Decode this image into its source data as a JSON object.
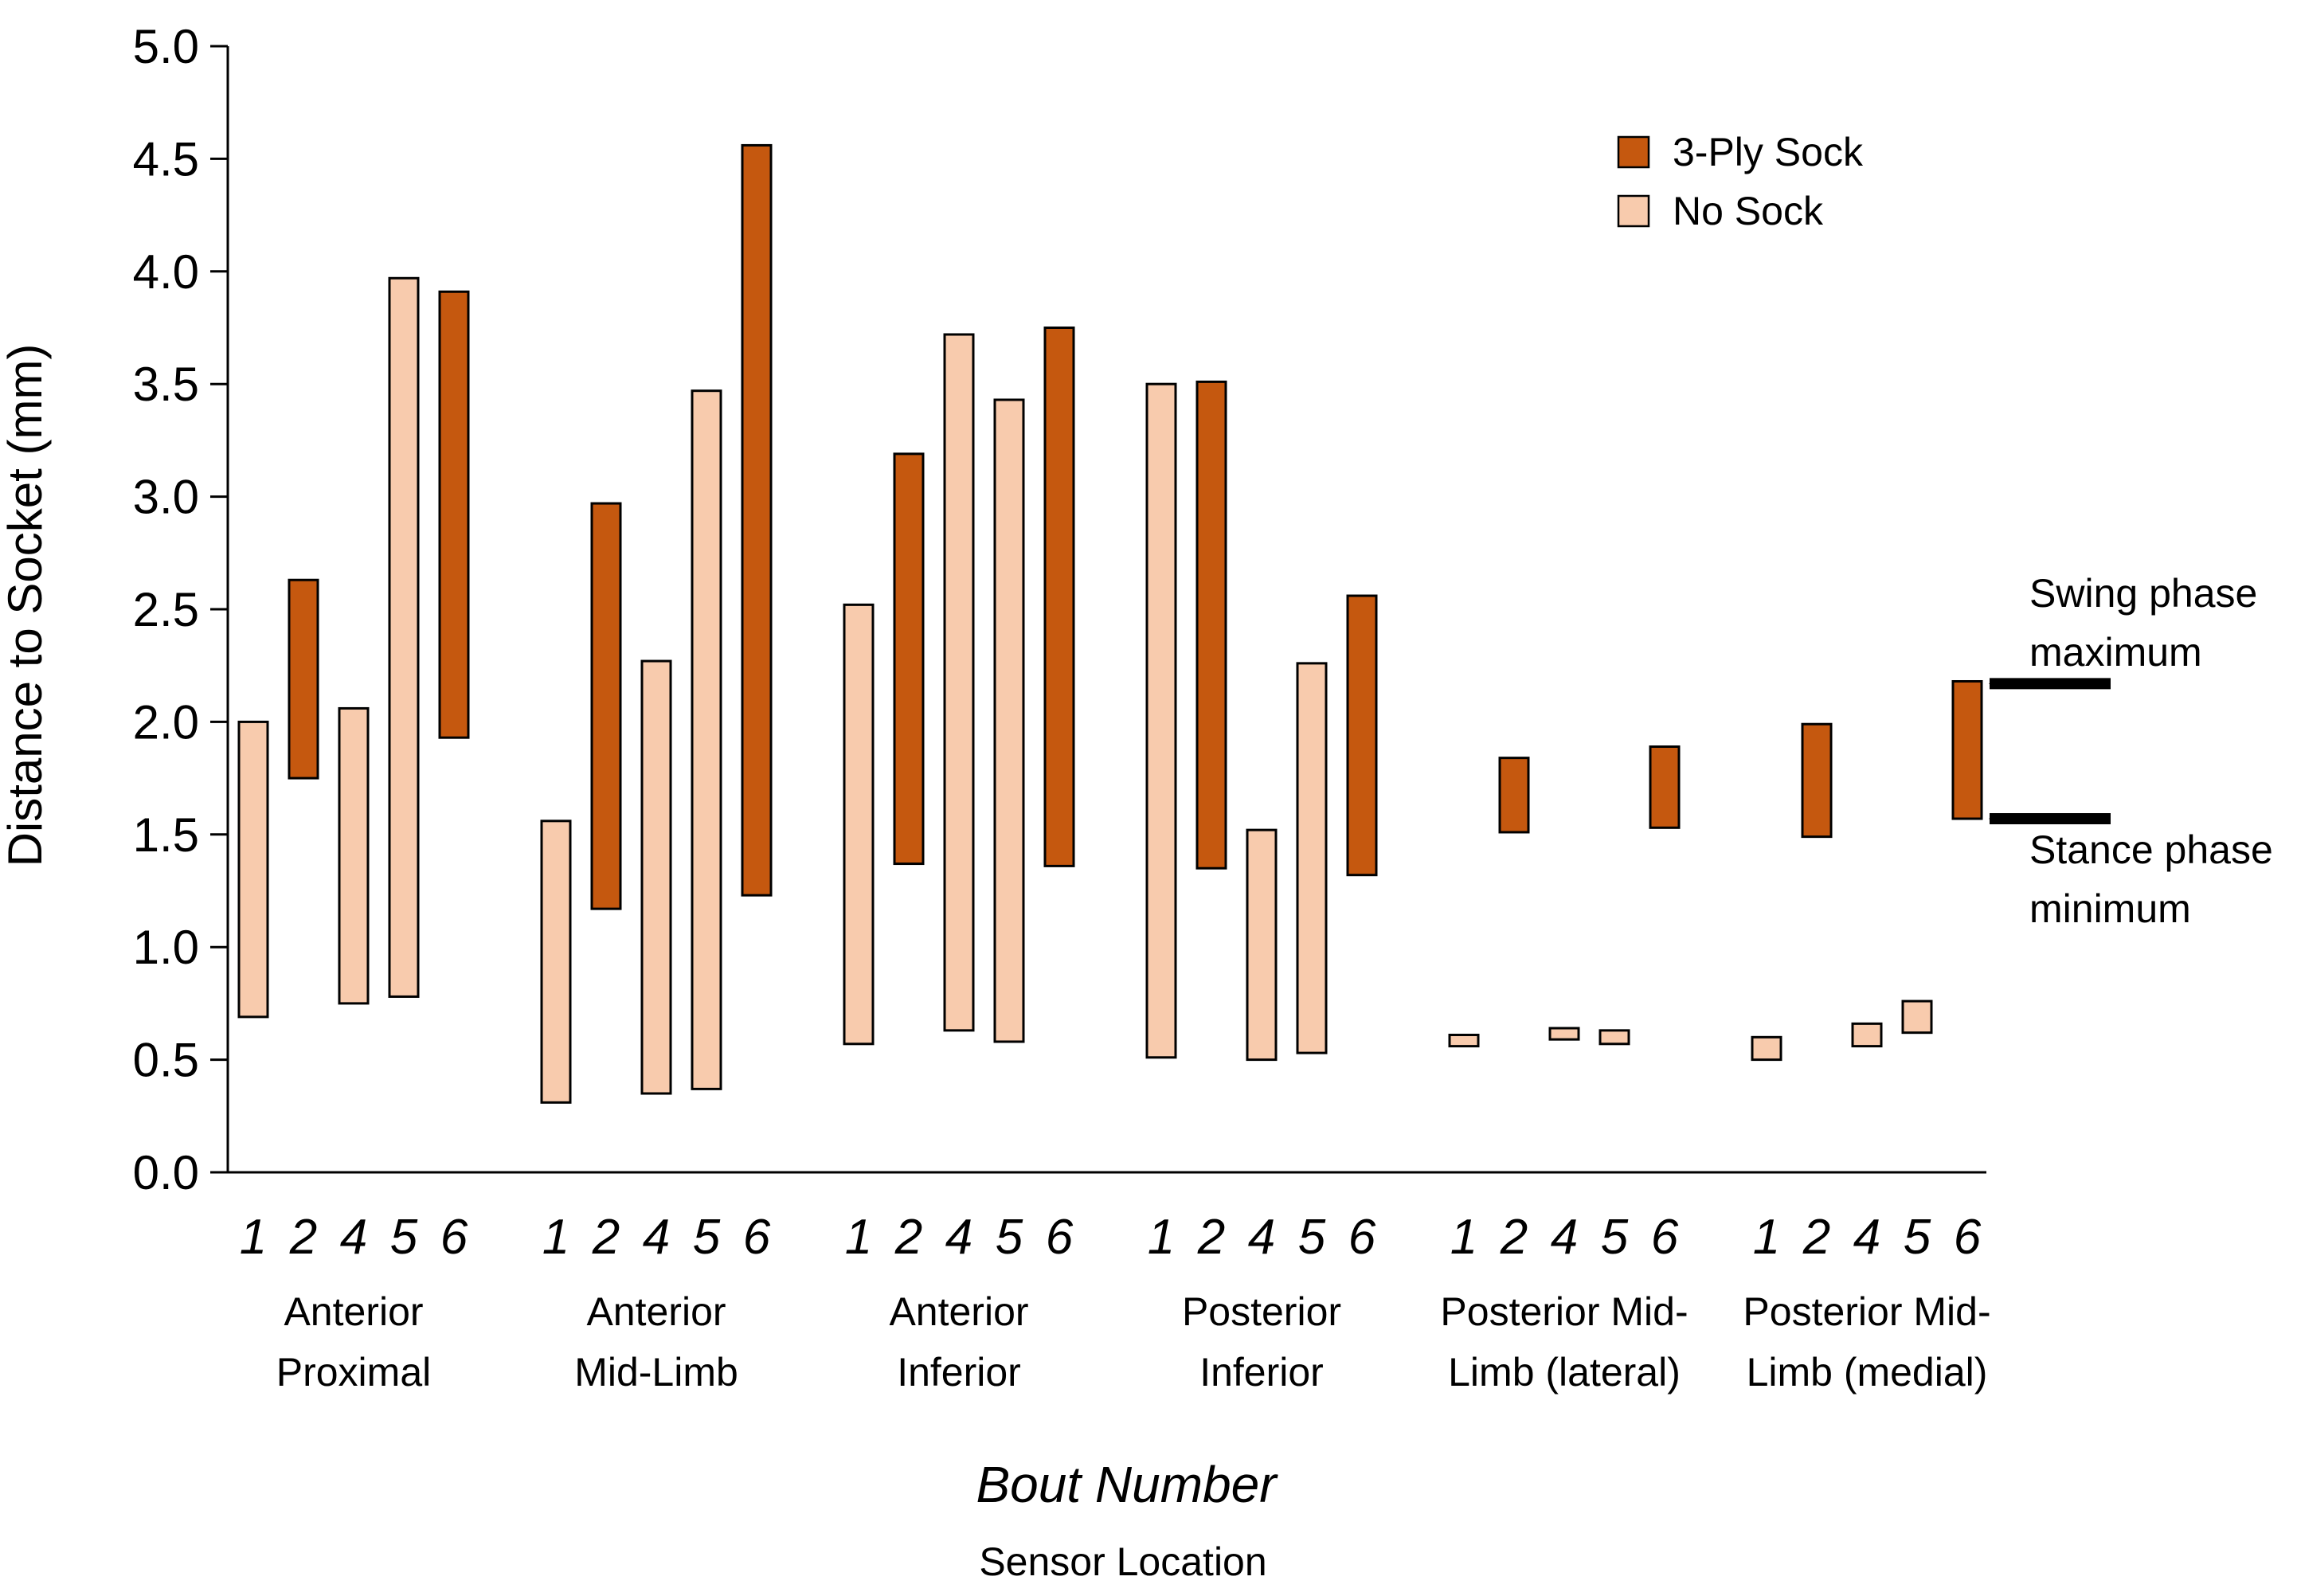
{
  "chart_data": {
    "type": "floating-bar",
    "ylabel": "Distance to Socket (mm)",
    "xlabel": "Bout Number",
    "xlabel2": "Sensor Location",
    "ylim": [
      0,
      5
    ],
    "ytick_labels": [
      "0.0",
      "0.5",
      "1.0",
      "1.5",
      "2.0",
      "2.5",
      "3.0",
      "3.5",
      "4.0",
      "4.5",
      "5.0"
    ],
    "legend": [
      {
        "key": "sock",
        "label": "3-Ply Sock",
        "color": "#c5580f"
      },
      {
        "key": "nosock",
        "label": "No Sock",
        "color": "#f8cbad"
      }
    ],
    "annotations": {
      "swing": [
        "Swing phase",
        "maximum"
      ],
      "stance": [
        "Stance phase",
        "minimum"
      ],
      "swing_value": 2.17,
      "stance_value": 1.57
    },
    "groups": [
      {
        "name_lines": [
          "Anterior",
          "Proximal"
        ],
        "bars": [
          {
            "bout": "1",
            "type": "nosock",
            "min": 0.69,
            "max": 2.0
          },
          {
            "bout": "2",
            "type": "sock",
            "min": 1.75,
            "max": 2.63
          },
          {
            "bout": "4",
            "type": "nosock",
            "min": 0.75,
            "max": 2.06
          },
          {
            "bout": "5",
            "type": "nosock",
            "min": 0.78,
            "max": 3.97
          },
          {
            "bout": "6",
            "type": "sock",
            "min": 1.93,
            "max": 3.91
          }
        ]
      },
      {
        "name_lines": [
          "Anterior",
          "Mid-Limb"
        ],
        "bars": [
          {
            "bout": "1",
            "type": "nosock",
            "min": 0.31,
            "max": 1.56
          },
          {
            "bout": "2",
            "type": "sock",
            "min": 1.17,
            "max": 2.97
          },
          {
            "bout": "4",
            "type": "nosock",
            "min": 0.35,
            "max": 2.27
          },
          {
            "bout": "5",
            "type": "nosock",
            "min": 0.37,
            "max": 3.47
          },
          {
            "bout": "6",
            "type": "sock",
            "min": 1.23,
            "max": 4.56
          }
        ]
      },
      {
        "name_lines": [
          "Anterior",
          "Inferior"
        ],
        "bars": [
          {
            "bout": "1",
            "type": "nosock",
            "min": 0.57,
            "max": 2.52
          },
          {
            "bout": "2",
            "type": "sock",
            "min": 1.37,
            "max": 3.19
          },
          {
            "bout": "4",
            "type": "nosock",
            "min": 0.63,
            "max": 3.72
          },
          {
            "bout": "5",
            "type": "nosock",
            "min": 0.58,
            "max": 3.43
          },
          {
            "bout": "6",
            "type": "sock",
            "min": 1.36,
            "max": 3.75
          }
        ]
      },
      {
        "name_lines": [
          "Posterior",
          "Inferior"
        ],
        "bars": [
          {
            "bout": "1",
            "type": "nosock",
            "min": 0.51,
            "max": 3.5
          },
          {
            "bout": "2",
            "type": "sock",
            "min": 1.35,
            "max": 3.51
          },
          {
            "bout": "4",
            "type": "nosock",
            "min": 0.5,
            "max": 1.52
          },
          {
            "bout": "5",
            "type": "nosock",
            "min": 0.53,
            "max": 2.26
          },
          {
            "bout": "6",
            "type": "sock",
            "min": 1.32,
            "max": 2.56
          }
        ]
      },
      {
        "name_lines": [
          "Posterior Mid-",
          "Limb (lateral)"
        ],
        "bars": [
          {
            "bout": "1",
            "type": "nosock",
            "min": 0.56,
            "max": 0.61
          },
          {
            "bout": "2",
            "type": "sock",
            "min": 1.51,
            "max": 1.84
          },
          {
            "bout": "4",
            "type": "nosock",
            "min": 0.59,
            "max": 0.64
          },
          {
            "bout": "5",
            "type": "nosock",
            "min": 0.57,
            "max": 0.63
          },
          {
            "bout": "6",
            "type": "sock",
            "min": 1.53,
            "max": 1.89
          }
        ]
      },
      {
        "name_lines": [
          "Posterior Mid-",
          "Limb (medial)"
        ],
        "bars": [
          {
            "bout": "1",
            "type": "nosock",
            "min": 0.5,
            "max": 0.6
          },
          {
            "bout": "2",
            "type": "sock",
            "min": 1.49,
            "max": 1.99
          },
          {
            "bout": "4",
            "type": "nosock",
            "min": 0.56,
            "max": 0.66
          },
          {
            "bout": "5",
            "type": "nosock",
            "min": 0.62,
            "max": 0.76
          },
          {
            "bout": "6",
            "type": "sock",
            "min": 1.57,
            "max": 2.18
          }
        ]
      }
    ]
  }
}
